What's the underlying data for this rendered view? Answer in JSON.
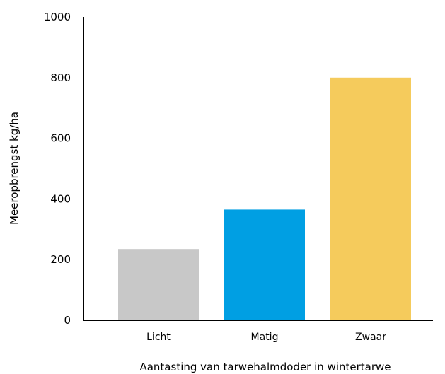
{
  "chart_data": {
    "type": "bar",
    "categories": [
      "Licht",
      "Matig",
      "Zwaar"
    ],
    "values": [
      235,
      365,
      800
    ],
    "colors": [
      "#c8c8c8",
      "#009fe3",
      "#f5cb5c"
    ],
    "xlabel": "Aantasting van tarwehalmdoder in wintertarwe",
    "ylabel": "Meeropbrengst kg/ha",
    "ylim": [
      0,
      1000
    ],
    "yticks": [
      "0",
      "200",
      "400",
      "600",
      "800",
      "1000"
    ],
    "grid": false
  }
}
